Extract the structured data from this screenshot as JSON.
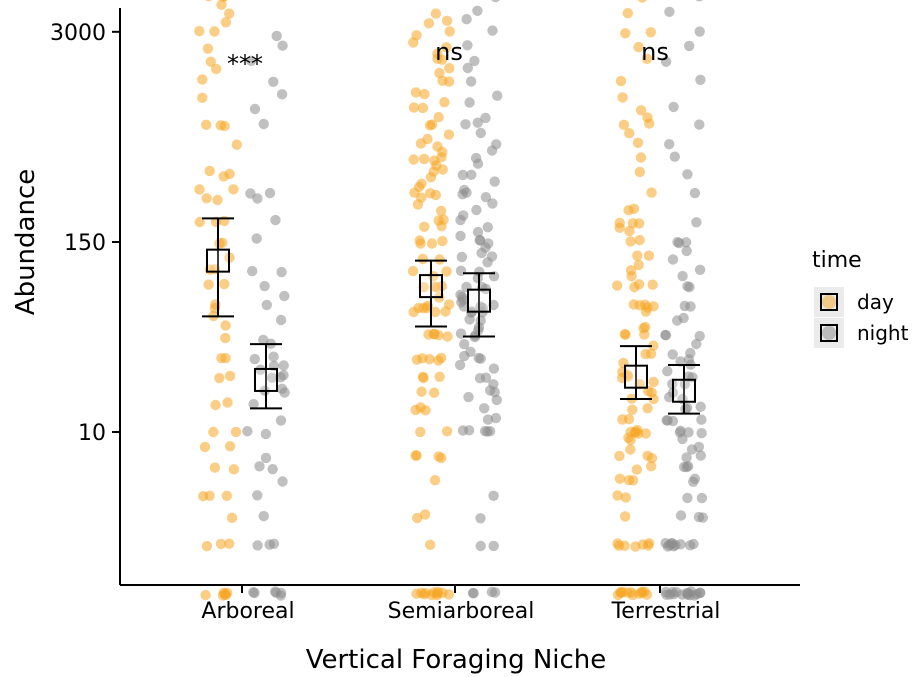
{
  "chart_data": {
    "type": "scatter",
    "xlabel": "Vertical Foraging Niche",
    "ylabel": "Abundance",
    "y_scale": "log",
    "ylim": [
      0.5,
      7000
    ],
    "yticks": [
      10,
      150,
      3000
    ],
    "ytick_labels": [
      "10",
      "150",
      "3000"
    ],
    "categories": [
      "Arboreal",
      "Semiarboreal",
      "Terrestrial"
    ],
    "annotations": [
      "***",
      "ns",
      "ns"
    ],
    "legend": {
      "title": "time",
      "position": "right",
      "entries": [
        "day",
        "night"
      ]
    },
    "colors": {
      "day": "#f5a623",
      "night": "#8c8c8c"
    },
    "grid": false,
    "series": [
      {
        "name": "day",
        "means": [
          115,
          80,
          22
        ],
        "ci_low": [
          52,
          45,
          16
        ],
        "ci_high": [
          210,
          115,
          34
        ],
        "points": [
          [
            1,
            1,
            1,
            1,
            1,
            1,
            2,
            2,
            2,
            3,
            4,
            4,
            4,
            6,
            6,
            8,
            8,
            10,
            10,
            15,
            15,
            22,
            22,
            28,
            28,
            38,
            45,
            52,
            60,
            60,
            80,
            80,
            100,
            100,
            120,
            150,
            150,
            200,
            200,
            200,
            280,
            280,
            320,
            320,
            380,
            400,
            420,
            600,
            800,
            800,
            800,
            1200,
            1500,
            1800,
            2000,
            2400,
            3000,
            3000,
            3500,
            4000,
            4500,
            5000,
            5000,
            5000,
            5000
          ],
          [
            1,
            1,
            1,
            1,
            1,
            1,
            1,
            1,
            1,
            1,
            1,
            2,
            3,
            3,
            5,
            7,
            7,
            7,
            7,
            10,
            10,
            14,
            14,
            14,
            18,
            18,
            22,
            22,
            22,
            28,
            28,
            28,
            28,
            28,
            40,
            40,
            40,
            40,
            40,
            55,
            55,
            55,
            60,
            60,
            60,
            60,
            60,
            70,
            80,
            80,
            80,
            80,
            90,
            100,
            100,
            120,
            120,
            150,
            150,
            150,
            150,
            190,
            190,
            200,
            210,
            230,
            250,
            280,
            300,
            300,
            300,
            320,
            350,
            380,
            400,
            420,
            450,
            480,
            480,
            500,
            500,
            550,
            600,
            600,
            650,
            700,
            800,
            800,
            900,
            1000,
            1000,
            1100,
            1200,
            1300,
            1500,
            1500,
            1700,
            1800,
            2000,
            2000,
            2200,
            2400,
            2600,
            2800,
            3000,
            3300,
            3500,
            4000
          ],
          [
            1,
            1,
            1,
            1,
            1,
            1,
            1,
            1,
            1,
            1,
            1,
            1,
            2,
            2,
            2,
            2,
            2,
            2,
            2,
            3,
            4,
            4,
            5,
            5,
            5,
            6,
            6,
            7,
            7,
            7,
            8,
            9,
            9,
            10,
            10,
            10,
            10,
            10,
            10,
            12,
            12,
            14,
            14,
            16,
            16,
            18,
            18,
            20,
            20,
            22,
            22,
            22,
            24,
            26,
            30,
            30,
            34,
            40,
            40,
            40,
            45,
            45,
            55,
            60,
            60,
            60,
            60,
            60,
            80,
            80,
            80,
            80,
            90,
            100,
            110,
            120,
            120,
            150,
            150,
            180,
            180,
            200,
            200,
            200,
            240,
            240,
            300,
            400,
            500,
            600,
            700,
            800,
            800,
            900,
            1000,
            1200,
            1500,
            2000,
            2400,
            3000,
            3000,
            4000,
            5000
          ]
        ]
      },
      {
        "name": "night",
        "means": [
          21,
          65,
          18
        ],
        "ci_low": [
          14,
          39,
          13
        ],
        "ci_high": [
          35,
          96,
          26
        ],
        "points": [
          [
            1,
            1,
            1,
            1,
            1,
            1,
            2,
            2,
            2,
            3,
            4,
            5,
            6,
            6,
            7,
            10,
            10,
            12,
            15,
            18,
            18,
            18,
            22,
            22,
            22,
            24,
            26,
            26,
            28,
            30,
            35,
            38,
            50,
            60,
            70,
            80,
            100,
            100,
            160,
            200,
            280,
            300,
            300,
            800,
            1000,
            1200,
            1500,
            2000,
            2500,
            2800
          ],
          [
            1,
            1,
            1,
            1,
            2,
            2,
            3,
            4,
            10,
            10,
            10,
            10,
            10,
            12,
            12,
            14,
            16,
            16,
            18,
            18,
            20,
            22,
            22,
            24,
            26,
            28,
            28,
            30,
            32,
            35,
            38,
            40,
            40,
            42,
            45,
            48,
            50,
            55,
            55,
            55,
            60,
            60,
            60,
            60,
            65,
            65,
            70,
            70,
            75,
            80,
            80,
            90,
            90,
            100,
            100,
            110,
            120,
            120,
            130,
            140,
            150,
            150,
            150,
            160,
            170,
            180,
            200,
            220,
            240,
            260,
            280,
            300,
            300,
            320,
            350,
            380,
            400,
            450,
            500,
            550,
            600,
            700,
            800,
            800,
            900,
            1100,
            1200,
            1500,
            1800,
            2000,
            2500,
            3000,
            3500,
            4000,
            5000
          ],
          [
            1,
            1,
            1,
            1,
            1,
            1,
            1,
            1,
            1,
            1,
            1,
            1,
            1,
            1,
            1,
            1,
            2,
            2,
            2,
            2,
            2,
            2,
            2,
            2,
            2,
            2,
            3,
            3,
            3,
            4,
            4,
            5,
            5,
            6,
            6,
            6,
            7,
            7,
            8,
            8,
            9,
            10,
            10,
            10,
            10,
            12,
            12,
            12,
            12,
            14,
            14,
            14,
            16,
            16,
            18,
            20,
            20,
            22,
            22,
            24,
            26,
            28,
            28,
            30,
            30,
            35,
            40,
            40,
            40,
            50,
            50,
            60,
            60,
            80,
            80,
            90,
            100,
            120,
            130,
            150,
            150,
            150,
            200,
            300,
            400,
            500,
            600,
            800,
            1000,
            1500,
            2000,
            2500,
            3000,
            4000,
            5000
          ]
        ]
      }
    ]
  }
}
